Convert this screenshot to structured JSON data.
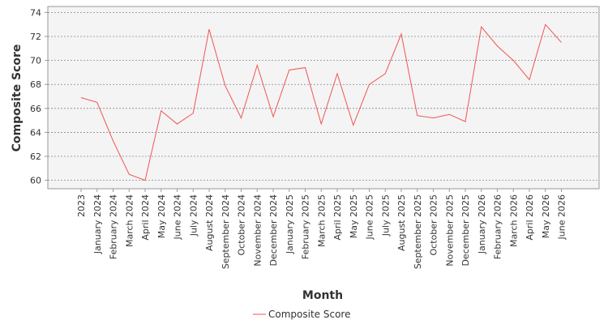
{
  "chart_data": {
    "type": "line",
    "title": "",
    "xlabel": "Month",
    "ylabel": "Composite Score",
    "ylim": [
      59.3,
      74.5
    ],
    "yticks": [
      60,
      62,
      64,
      66,
      68,
      70,
      72,
      74
    ],
    "grid": true,
    "legend_position": "bottom-center",
    "categories": [
      "2023",
      "January 2024",
      "February 2024",
      "March 2024",
      "April 2024",
      "May 2024",
      "June 2024",
      "July 2024",
      "August 2024",
      "September 2024",
      "October 2024",
      "November 2024",
      "December 2024",
      "January 2025",
      "February 2025",
      "March 2025",
      "April 2025",
      "May 2025",
      "June 2025",
      "July 2025",
      "August 2025",
      "September 2025",
      "October 2025",
      "November 2025",
      "December 2025",
      "January 2026",
      "February 2026",
      "March 2026",
      "April 2026",
      "May 2026",
      "June 2026"
    ],
    "series": [
      {
        "name": "Composite Score",
        "color": "#f05454",
        "values": [
          66.9,
          66.5,
          63.3,
          60.5,
          60.0,
          65.8,
          64.7,
          65.6,
          72.6,
          67.9,
          65.2,
          69.6,
          65.3,
          69.2,
          69.4,
          64.7,
          68.9,
          64.6,
          68.0,
          68.9,
          72.2,
          65.4,
          65.2,
          65.5,
          64.9,
          72.8,
          71.2,
          70.0,
          68.4,
          73.0,
          71.5
        ]
      }
    ]
  },
  "colors": {
    "plot_background": "#f4f4f4",
    "grid": "#888888",
    "axis": "#999999",
    "line": "#f05454"
  }
}
